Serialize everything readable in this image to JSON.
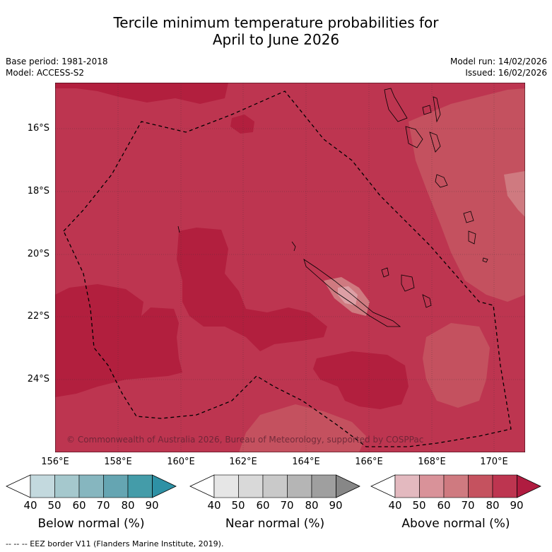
{
  "header": {
    "title_line1": "Tercile minimum temperature probabilities for",
    "title_line2": "April to June 2026",
    "base_period": "Base period: 1981-2018",
    "model": "Model: ACCESS-S2",
    "model_run": "Model run: 14/02/2026",
    "issued": "Issued: 16/02/2026"
  },
  "map": {
    "lat_labels": [
      "16°S",
      "18°S",
      "20°S",
      "22°S",
      "24°S"
    ],
    "lon_labels": [
      "156°E",
      "158°E",
      "160°E",
      "162°E",
      "164°E",
      "166°E",
      "168°E",
      "170°E"
    ],
    "copyright": "© Commonwealth of Australia 2026, Bureau of Meteorology, supported by COSPPac",
    "colors": {
      "above_80_90": "#bd3550",
      "above_90": "#b21f3e",
      "above_70_80": "#c4515f",
      "above_60_70": "#cf7a80",
      "above_50_60": "#dd9fa5",
      "above_40_50": "#e7c1c6"
    }
  },
  "colorbars": [
    {
      "name": "below-normal",
      "title": "Below normal (%)",
      "ticks": [
        "40",
        "50",
        "60",
        "70",
        "80",
        "90"
      ],
      "colors": [
        "#ffffff",
        "#c3d9de",
        "#a5c8cd",
        "#86b6bf",
        "#65a5b2",
        "#449ca9",
        "#2e91a5"
      ]
    },
    {
      "name": "near-normal",
      "title": "Near normal (%)",
      "ticks": [
        "40",
        "50",
        "60",
        "70",
        "80",
        "90"
      ],
      "colors": [
        "#ffffff",
        "#e6e6e6",
        "#d9d9d9",
        "#c9c9c9",
        "#b5b5b5",
        "#9f9f9f",
        "#878787"
      ]
    },
    {
      "name": "above-normal",
      "title": "Above normal (%)",
      "ticks": [
        "40",
        "50",
        "60",
        "70",
        "80",
        "90"
      ],
      "colors": [
        "#ffffff",
        "#e3b9bf",
        "#d99299",
        "#cf7a80",
        "#c5525f",
        "#bd3550",
        "#b01c40"
      ]
    }
  ],
  "footer": {
    "legend_line": "--  --  -- EEZ border V11 (Flanders Marine Institute, 2019)."
  }
}
